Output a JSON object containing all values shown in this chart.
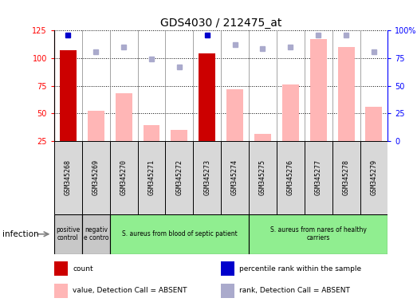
{
  "title": "GDS4030 / 212475_at",
  "samples": [
    "GSM345268",
    "GSM345269",
    "GSM345270",
    "GSM345271",
    "GSM345272",
    "GSM345273",
    "GSM345274",
    "GSM345275",
    "GSM345276",
    "GSM345277",
    "GSM345278",
    "GSM345279"
  ],
  "count_values": [
    107,
    null,
    null,
    null,
    null,
    104,
    null,
    null,
    null,
    null,
    null,
    null
  ],
  "percentile_present": [
    96,
    null,
    null,
    null,
    null,
    96,
    null,
    null,
    null,
    null,
    null,
    null
  ],
  "absent_value": [
    null,
    52,
    68,
    39,
    35,
    null,
    72,
    31,
    76,
    117,
    110,
    56
  ],
  "absent_rank": [
    null,
    81,
    85,
    74,
    67,
    null,
    87,
    84,
    85,
    96,
    96,
    81
  ],
  "ylim_left": [
    25,
    125
  ],
  "ylim_right": [
    0,
    100
  ],
  "yticks_left": [
    25,
    50,
    75,
    100,
    125
  ],
  "yticks_right": [
    0,
    25,
    50,
    75,
    100
  ],
  "ytick_labels_left": [
    "25",
    "50",
    "75",
    "100",
    "125"
  ],
  "ytick_labels_right": [
    "0",
    "25",
    "50",
    "75",
    "100%"
  ],
  "groups": [
    {
      "label": "positive\ncontrol",
      "start": 0,
      "end": 1,
      "color": "#c8c8c8"
    },
    {
      "label": "negativ\ne contro",
      "start": 1,
      "end": 2,
      "color": "#c8c8c8"
    },
    {
      "label": "S. aureus from blood of septic patient",
      "start": 2,
      "end": 7,
      "color": "#90ee90"
    },
    {
      "label": "S. aureus from nares of healthy\ncarriers",
      "start": 7,
      "end": 12,
      "color": "#90ee90"
    }
  ],
  "infection_label": "infection",
  "bar_color_count": "#cc0000",
  "bar_color_absent": "#ffb6b6",
  "dot_color_present": "#0000cc",
  "dot_color_absent": "#aaaacc",
  "bar_width": 0.6,
  "legend_items": [
    {
      "color": "#cc0000",
      "label": "count"
    },
    {
      "color": "#0000cc",
      "label": "percentile rank within the sample"
    },
    {
      "color": "#ffb6b6",
      "label": "value, Detection Call = ABSENT"
    },
    {
      "color": "#aaaacc",
      "label": "rank, Detection Call = ABSENT"
    }
  ]
}
